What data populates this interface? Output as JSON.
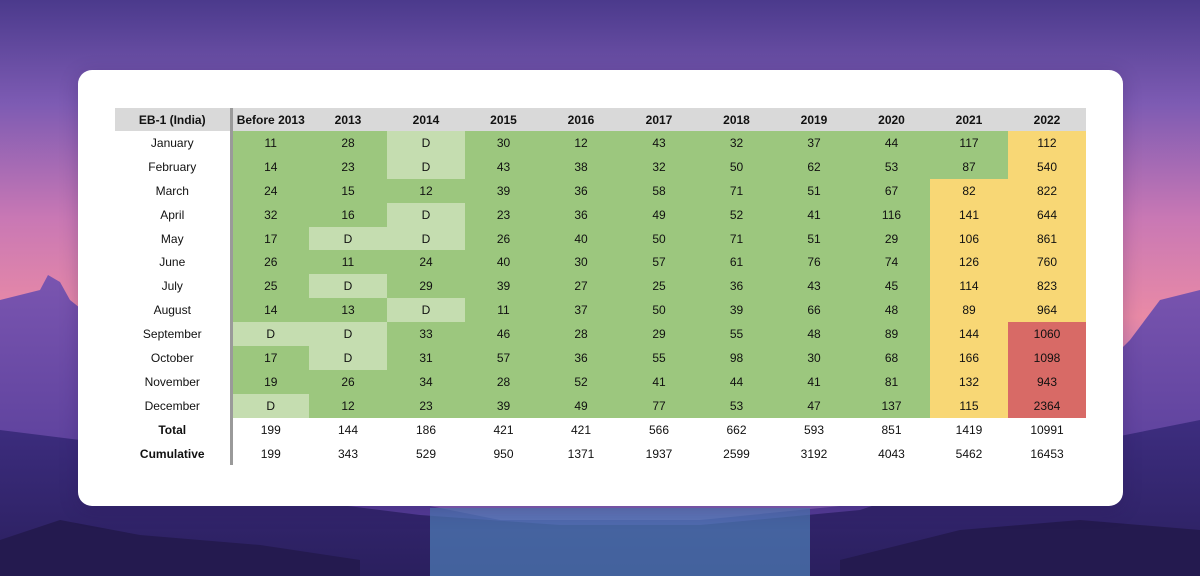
{
  "colors": {
    "green": "#9cc77e",
    "light_green": "#c5ddb0",
    "yellow": "#f8d775",
    "red": "#d86a66",
    "header": "#d9d9d9"
  },
  "chart_data": {
    "type": "table",
    "title": "EB-1 (India)",
    "columns": [
      "Before 2013",
      "2013",
      "2014",
      "2015",
      "2016",
      "2017",
      "2018",
      "2019",
      "2020",
      "2021",
      "2022"
    ],
    "rows": [
      {
        "label": "January",
        "values": [
          "11",
          "28",
          "D",
          "30",
          "12",
          "43",
          "32",
          "37",
          "44",
          "117",
          "112"
        ],
        "shade": [
          "g",
          "g",
          "l",
          "g",
          "g",
          "g",
          "g",
          "g",
          "g",
          "g",
          "y"
        ]
      },
      {
        "label": "February",
        "values": [
          "14",
          "23",
          "D",
          "43",
          "38",
          "32",
          "50",
          "62",
          "53",
          "87",
          "540"
        ],
        "shade": [
          "g",
          "g",
          "l",
          "g",
          "g",
          "g",
          "g",
          "g",
          "g",
          "g",
          "y"
        ]
      },
      {
        "label": "March",
        "values": [
          "24",
          "15",
          "12",
          "39",
          "36",
          "58",
          "71",
          "51",
          "67",
          "82",
          "822"
        ],
        "shade": [
          "g",
          "g",
          "g",
          "g",
          "g",
          "g",
          "g",
          "g",
          "g",
          "y",
          "y"
        ]
      },
      {
        "label": "April",
        "values": [
          "32",
          "16",
          "D",
          "23",
          "36",
          "49",
          "52",
          "41",
          "116",
          "141",
          "644"
        ],
        "shade": [
          "g",
          "g",
          "l",
          "g",
          "g",
          "g",
          "g",
          "g",
          "g",
          "y",
          "y"
        ]
      },
      {
        "label": "May",
        "values": [
          "17",
          "D",
          "D",
          "26",
          "40",
          "50",
          "71",
          "51",
          "29",
          "106",
          "861"
        ],
        "shade": [
          "g",
          "l",
          "l",
          "g",
          "g",
          "g",
          "g",
          "g",
          "g",
          "y",
          "y"
        ]
      },
      {
        "label": "June",
        "values": [
          "26",
          "11",
          "24",
          "40",
          "30",
          "57",
          "61",
          "76",
          "74",
          "126",
          "760"
        ],
        "shade": [
          "g",
          "g",
          "g",
          "g",
          "g",
          "g",
          "g",
          "g",
          "g",
          "y",
          "y"
        ]
      },
      {
        "label": "July",
        "values": [
          "25",
          "D",
          "29",
          "39",
          "27",
          "25",
          "36",
          "43",
          "45",
          "114",
          "823"
        ],
        "shade": [
          "g",
          "l",
          "g",
          "g",
          "g",
          "g",
          "g",
          "g",
          "g",
          "y",
          "y"
        ]
      },
      {
        "label": "August",
        "values": [
          "14",
          "13",
          "D",
          "11",
          "37",
          "50",
          "39",
          "66",
          "48",
          "89",
          "964"
        ],
        "shade": [
          "g",
          "g",
          "l",
          "g",
          "g",
          "g",
          "g",
          "g",
          "g",
          "y",
          "y"
        ]
      },
      {
        "label": "September",
        "values": [
          "D",
          "D",
          "33",
          "46",
          "28",
          "29",
          "55",
          "48",
          "89",
          "144",
          "1060"
        ],
        "shade": [
          "l",
          "l",
          "g",
          "g",
          "g",
          "g",
          "g",
          "g",
          "g",
          "y",
          "r"
        ]
      },
      {
        "label": "October",
        "values": [
          "17",
          "D",
          "31",
          "57",
          "36",
          "55",
          "98",
          "30",
          "68",
          "166",
          "1098"
        ],
        "shade": [
          "g",
          "l",
          "g",
          "g",
          "g",
          "g",
          "g",
          "g",
          "g",
          "y",
          "r"
        ]
      },
      {
        "label": "November",
        "values": [
          "19",
          "26",
          "34",
          "28",
          "52",
          "41",
          "44",
          "41",
          "81",
          "132",
          "943"
        ],
        "shade": [
          "g",
          "g",
          "g",
          "g",
          "g",
          "g",
          "g",
          "g",
          "g",
          "y",
          "r"
        ]
      },
      {
        "label": "December",
        "values": [
          "D",
          "12",
          "23",
          "39",
          "49",
          "77",
          "53",
          "47",
          "137",
          "115",
          "2364"
        ],
        "shade": [
          "l",
          "g",
          "g",
          "g",
          "g",
          "g",
          "g",
          "g",
          "g",
          "y",
          "r"
        ]
      }
    ],
    "totals": {
      "label": "Total",
      "values": [
        "199",
        "144",
        "186",
        "421",
        "421",
        "566",
        "662",
        "593",
        "851",
        "1419",
        "10991"
      ]
    },
    "cumulative": {
      "label": "Cumulative",
      "values": [
        "199",
        "343",
        "529",
        "950",
        "1371",
        "1937",
        "2599",
        "3192",
        "4043",
        "5462",
        "16453"
      ]
    }
  }
}
